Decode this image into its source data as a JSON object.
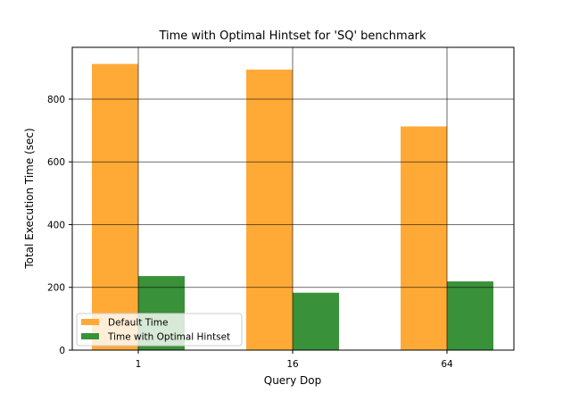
{
  "chart_data": {
    "type": "bar",
    "title": "Time with Optimal Hintset for 'SQ' benchmark",
    "xlabel": "Query Dop",
    "ylabel": "Total Execution Time (sec)",
    "categories": [
      "1",
      "16",
      "64"
    ],
    "series": [
      {
        "name": "Default Time",
        "values": [
          912,
          894,
          713
        ],
        "color": "#FFA52C",
        "opacity": 0.95
      },
      {
        "name": "Time with Optimal Hintset",
        "values": [
          236,
          183,
          219
        ],
        "color": "#2E8B2E",
        "opacity": 0.95
      }
    ],
    "ylim": [
      0,
      965
    ],
    "yticks": [
      0,
      200,
      400,
      600,
      800
    ],
    "grid": true,
    "legend_position": "lower-left"
  }
}
